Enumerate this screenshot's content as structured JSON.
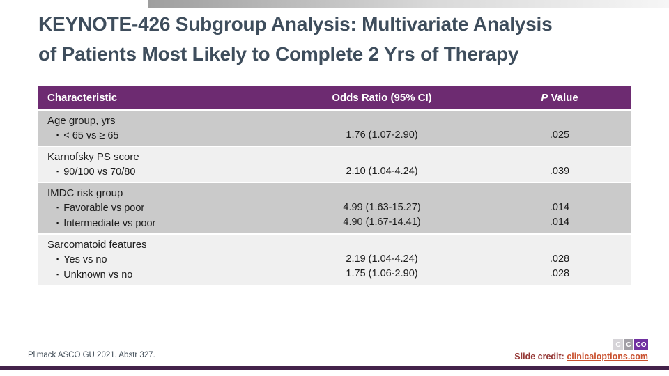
{
  "title": {
    "line1": "KEYNOTE-426 Subgroup Analysis: Multivariate Analysis",
    "line2": "of Patients Most Likely to Complete 2 Yrs of Therapy"
  },
  "table": {
    "headers": [
      "Characteristic",
      "Odds Ratio (95% CI)",
      "P Value"
    ],
    "bullet_icon": "▪",
    "rows": [
      {
        "category": "Age group, yrs",
        "shade": "dark",
        "items": [
          {
            "label": "< 65 vs ≥ 65",
            "odds_ratio": "1.76 (1.07-2.90)",
            "p_value": ".025"
          }
        ]
      },
      {
        "category": "Karnofsky PS score",
        "shade": "light",
        "items": [
          {
            "label": "90/100 vs 70/80",
            "odds_ratio": "2.10 (1.04-4.24)",
            "p_value": ".039"
          }
        ]
      },
      {
        "category": "IMDC risk group",
        "shade": "dark",
        "items": [
          {
            "label": "Favorable vs poor",
            "odds_ratio": "4.99 (1.63-15.27)",
            "p_value": ".014"
          },
          {
            "label": "Intermediate vs poor",
            "odds_ratio": "4.90 (1.67-14.41)",
            "p_value": ".014"
          }
        ]
      },
      {
        "category": "Sarcomatoid features",
        "shade": "light",
        "items": [
          {
            "label": "Yes vs no",
            "odds_ratio": "2.19 (1.04-4.24)",
            "p_value": ".028"
          },
          {
            "label": "Unknown vs no",
            "odds_ratio": "1.75 (1.06-2.90)",
            "p_value": ".028"
          }
        ]
      }
    ]
  },
  "footer": {
    "reference": "Plimack  ASCO  GU 2021.  Abstr 327.",
    "credit_label": "Slide credit: ",
    "credit_link": "clinicaloptions.com",
    "logo_tiles": [
      {
        "text": "C",
        "color": "#d6d4d8"
      },
      {
        "text": "C",
        "color": "#a29fa6"
      },
      {
        "text": "CO",
        "color": "#7030a0"
      }
    ]
  },
  "colors": {
    "title_text": "#3e4d5c",
    "table_header_bg": "#6d2b71",
    "row_dark": "#cacaca",
    "row_light": "#f0f0f0",
    "credit_label_red": "#943634",
    "credit_link_orange": "#c9502e",
    "bottom_rule_purple": "#44224a",
    "logo_purple": "#7030a0"
  }
}
